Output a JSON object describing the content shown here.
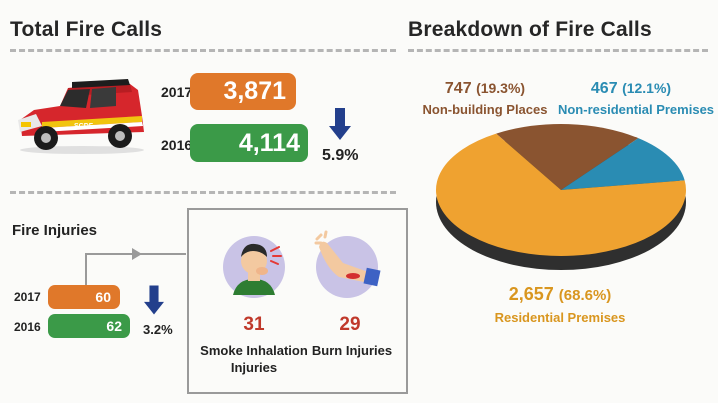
{
  "total": {
    "title": "Total Fire Calls",
    "rows": [
      {
        "year": "2017",
        "value": "3,871"
      },
      {
        "year": "2016",
        "value": "4,114"
      }
    ],
    "change": "5.9%"
  },
  "injuries": {
    "title": "Fire Injuries",
    "rows": [
      {
        "year": "2017",
        "value": "60"
      },
      {
        "year": "2016",
        "value": "62"
      }
    ],
    "change": "3.2%",
    "smoke": {
      "value": "31",
      "label1": "Smoke Inhalation",
      "label2": "Injuries"
    },
    "burn": {
      "value": "29",
      "label": "Burn Injuries"
    }
  },
  "breakdown": {
    "title": "Breakdown of Fire Calls",
    "nonbuilding": {
      "count": "747",
      "pct": "(19.3%)",
      "label": "Non-building Places"
    },
    "nonresidential": {
      "count": "467",
      "pct": "(12.1%)",
      "label": "Non-residential Premises"
    },
    "residential": {
      "count": "2,657",
      "pct": "(68.6%)",
      "label": "Residential Premises"
    }
  },
  "colors": {
    "orange": "#e0782a",
    "green": "#3b9a48",
    "arrow": "#233f8c",
    "pie_residential": "#efa230",
    "pie_nonbuilding": "#8a5430",
    "pie_nonresidential": "#2a8cb3",
    "label_brown": "#8a5430",
    "label_blue": "#2a8cb3",
    "label_orange": "#d9961f"
  },
  "chart_data": [
    {
      "type": "bar",
      "title": "Total Fire Calls",
      "categories": [
        "2017",
        "2016"
      ],
      "values": [
        3871,
        4114
      ]
    },
    {
      "type": "bar",
      "title": "Fire Injuries",
      "categories": [
        "2017",
        "2016"
      ],
      "values": [
        60,
        62
      ]
    },
    {
      "type": "pie",
      "title": "Breakdown of Fire Calls",
      "categories": [
        "Residential Premises",
        "Non-building Places",
        "Non-residential Premises"
      ],
      "values": [
        2657,
        747,
        467
      ],
      "percent": [
        68.6,
        19.3,
        12.1
      ]
    }
  ]
}
